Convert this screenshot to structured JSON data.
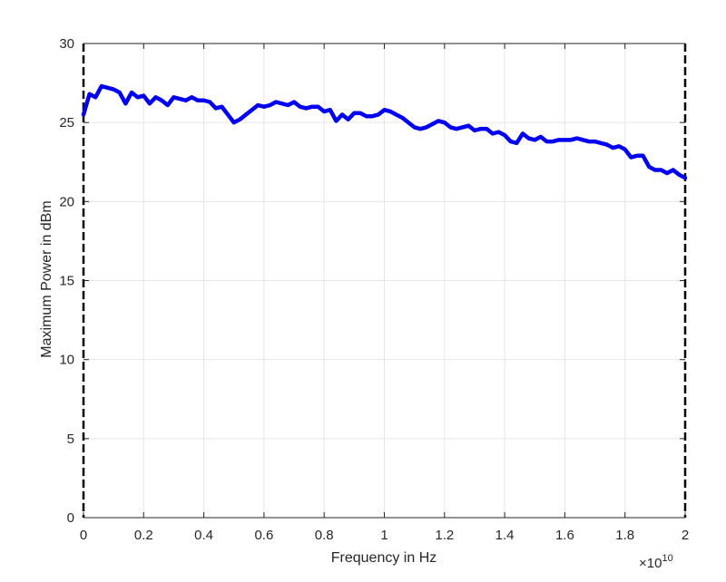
{
  "chart_data": {
    "type": "line",
    "xlabel": "Frequency in Hz",
    "ylabel": "Maximum Power in dBm",
    "x_multiplier": "×10",
    "x_exponent": "10",
    "xlim": [
      0,
      2
    ],
    "ylim": [
      0,
      30
    ],
    "x_ticks": [
      "0",
      "0.2",
      "0.4",
      "0.6",
      "0.8",
      "1",
      "1.2",
      "1.4",
      "1.6",
      "1.8",
      "2"
    ],
    "y_ticks": [
      "0",
      "5",
      "10",
      "15",
      "20",
      "25",
      "30"
    ],
    "grid": true,
    "line_color": "#0000ee",
    "series": [
      {
        "x": [
          0,
          0.02,
          0.04,
          0.06,
          0.08,
          0.1,
          0.12,
          0.14,
          0.16,
          0.18,
          0.2,
          0.22,
          0.24,
          0.26,
          0.28,
          0.3,
          0.32,
          0.34,
          0.36,
          0.38,
          0.4,
          0.42,
          0.44,
          0.46,
          0.48,
          0.5,
          0.52,
          0.54,
          0.56,
          0.58,
          0.6,
          0.62,
          0.64,
          0.66,
          0.68,
          0.7,
          0.72,
          0.74,
          0.76,
          0.78,
          0.8,
          0.82,
          0.84,
          0.86,
          0.88,
          0.9,
          0.92,
          0.94,
          0.96,
          0.98,
          1.0,
          1.02,
          1.04,
          1.06,
          1.08,
          1.1,
          1.12,
          1.14,
          1.16,
          1.18,
          1.2,
          1.22,
          1.24,
          1.26,
          1.28,
          1.3,
          1.32,
          1.34,
          1.36,
          1.38,
          1.4,
          1.42,
          1.44,
          1.46,
          1.48,
          1.5,
          1.52,
          1.54,
          1.56,
          1.58,
          1.6,
          1.62,
          1.64,
          1.66,
          1.68,
          1.7,
          1.72,
          1.74,
          1.76,
          1.78,
          1.8,
          1.82,
          1.84,
          1.86,
          1.88,
          1.9,
          1.92,
          1.94,
          1.96,
          1.98,
          2.0
        ],
        "y": [
          25.5,
          26.8,
          26.6,
          27.3,
          27.2,
          27.1,
          26.9,
          26.2,
          26.9,
          26.6,
          26.7,
          26.2,
          26.6,
          26.4,
          26.1,
          26.6,
          26.5,
          26.4,
          26.6,
          26.4,
          26.4,
          26.3,
          25.9,
          26.0,
          25.5,
          25.0,
          25.2,
          25.5,
          25.8,
          26.1,
          26.0,
          26.1,
          26.3,
          26.2,
          26.1,
          26.3,
          26.0,
          25.9,
          26.0,
          26.0,
          25.7,
          25.8,
          25.1,
          25.5,
          25.2,
          25.6,
          25.6,
          25.4,
          25.4,
          25.5,
          25.8,
          25.7,
          25.5,
          25.3,
          25.0,
          24.7,
          24.6,
          24.7,
          24.9,
          25.1,
          25.0,
          24.7,
          24.6,
          24.7,
          24.8,
          24.5,
          24.6,
          24.6,
          24.3,
          24.4,
          24.2,
          23.8,
          23.7,
          24.3,
          24.0,
          23.9,
          24.1,
          23.8,
          23.8,
          23.9,
          23.9,
          23.9,
          24.0,
          23.9,
          23.8,
          23.8,
          23.7,
          23.6,
          23.4,
          23.5,
          23.3,
          22.8,
          22.9,
          22.9,
          22.2,
          22.0,
          22.0,
          21.8,
          22.0,
          21.7,
          21.5
        ]
      }
    ]
  }
}
